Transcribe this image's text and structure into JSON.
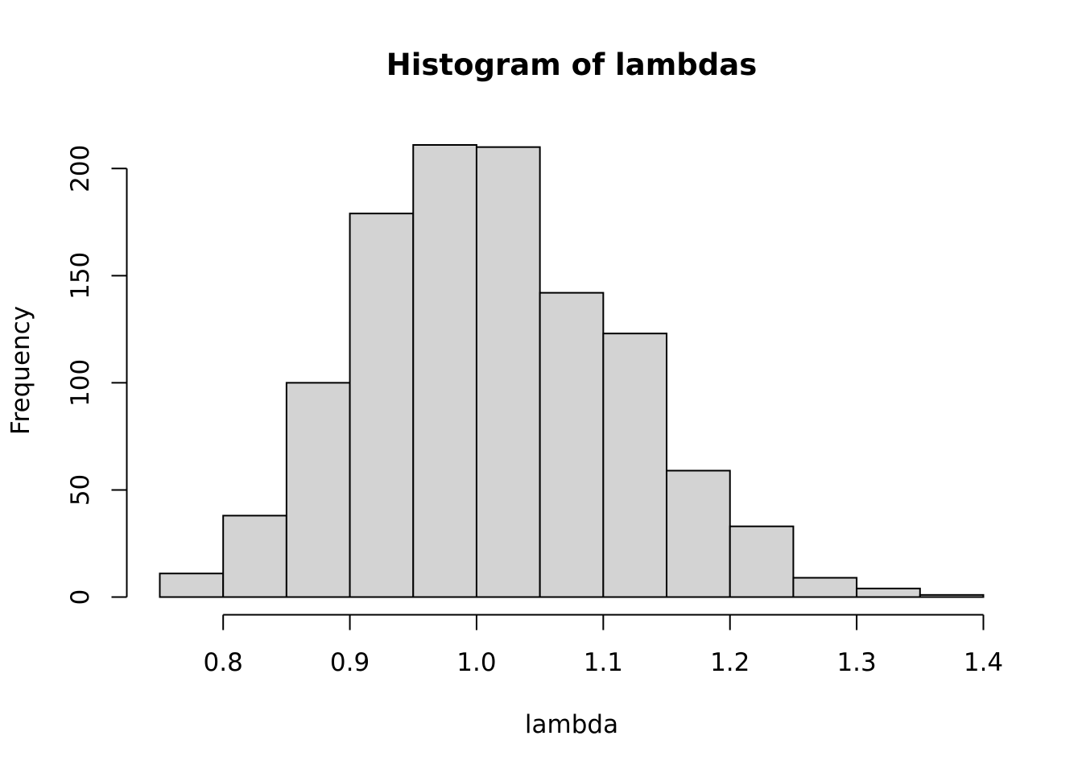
{
  "chart_data": {
    "type": "bar",
    "title": "Histogram of lambdas",
    "xlabel": "lambda",
    "ylabel": "Frequency",
    "bin_edges": [
      0.75,
      0.8,
      0.85,
      0.9,
      0.95,
      1.0,
      1.05,
      1.1,
      1.15,
      1.2,
      1.25,
      1.3,
      1.35,
      1.4
    ],
    "counts": [
      11,
      38,
      100,
      179,
      211,
      210,
      142,
      123,
      59,
      33,
      9,
      4,
      1
    ],
    "xlim": [
      0.75,
      1.4
    ],
    "ylim": [
      0,
      211
    ],
    "x_ticks": [
      0.8,
      0.9,
      1.0,
      1.1,
      1.2,
      1.3,
      1.4
    ],
    "x_tick_labels": [
      "0.8",
      "0.9",
      "1.0",
      "1.1",
      "1.2",
      "1.3",
      "1.4"
    ],
    "y_ticks": [
      0,
      50,
      100,
      150,
      200
    ],
    "y_tick_labels": [
      "0",
      "50",
      "100",
      "150",
      "200"
    ],
    "grid": false,
    "legend": "none",
    "colors": {
      "bar_fill": "#d3d3d3",
      "bar_stroke": "#000000",
      "background": "#ffffff"
    }
  }
}
